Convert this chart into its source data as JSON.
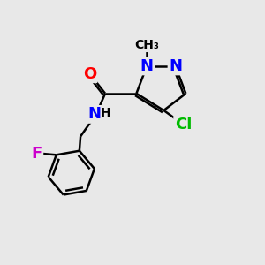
{
  "background_color": "#e8e8e8",
  "bond_color": "#000000",
  "atom_colors": {
    "N": "#0000ff",
    "O": "#ff0000",
    "Cl": "#00bb00",
    "F": "#cc00cc",
    "C": "#000000",
    "H": "#000000"
  },
  "bond_width": 1.8,
  "font_size_atom": 13,
  "font_size_small": 10,
  "font_size_methyl": 10
}
